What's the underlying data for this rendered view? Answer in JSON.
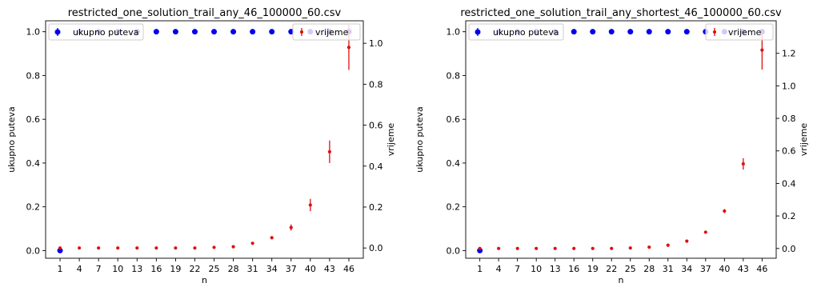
{
  "chart_data": [
    {
      "type": "scatter",
      "title": "restricted_one_solution_trail_any_46_100000_60.csv",
      "xlabel": "n",
      "ylabel_left": "ukupno puteva",
      "ylabel_right": "vrijeme",
      "x": [
        1,
        4,
        7,
        10,
        13,
        16,
        19,
        22,
        25,
        28,
        31,
        34,
        37,
        40,
        43,
        46
      ],
      "x_ticks": [
        "1",
        "4",
        "7",
        "10",
        "13",
        "16",
        "19",
        "22",
        "25",
        "28",
        "31",
        "34",
        "37",
        "40",
        "43",
        "46"
      ],
      "left_axis": {
        "ylim": [
          -0.035,
          1.05
        ],
        "ticks": [
          "0.0",
          "0.2",
          "0.4",
          "0.6",
          "0.8",
          "1.0"
        ]
      },
      "right_axis": {
        "ylim": [
          -0.05,
          1.11
        ],
        "ticks": [
          "0.0",
          "0.2",
          "0.4",
          "0.6",
          "0.8",
          "1.0"
        ]
      },
      "series": [
        {
          "name": "ukupno puteva",
          "axis": "left",
          "color": "#0000ee",
          "values": [
            0,
            1,
            1,
            1,
            1,
            1,
            1,
            1,
            1,
            1,
            1,
            1,
            1,
            1,
            1,
            1
          ],
          "errors": [
            0,
            0,
            0,
            0,
            0,
            0,
            0,
            0,
            0,
            0,
            0,
            0,
            0,
            0,
            0,
            0
          ]
        },
        {
          "name": "vrijeme",
          "axis": "right",
          "color": "#dd1111",
          "values": [
            0.0,
            0.0,
            0.0,
            0.0,
            0.0,
            0.0,
            0.0,
            0.0,
            0.003,
            0.006,
            0.023,
            0.05,
            0.1,
            0.21,
            0.47,
            0.98
          ],
          "errors": [
            0,
            0,
            0,
            0,
            0,
            0,
            0,
            0,
            0.001,
            0.002,
            0.004,
            0.008,
            0.015,
            0.03,
            0.055,
            0.11
          ]
        }
      ],
      "legend_left": "top-left",
      "legend_right": "top-right",
      "grid": false
    },
    {
      "type": "scatter",
      "title": "restricted_one_solution_trail_any_shortest_46_100000_60.csv",
      "xlabel": "n",
      "ylabel_left": "ukupno puteva",
      "ylabel_right": "vrijeme",
      "x": [
        1,
        4,
        7,
        10,
        13,
        16,
        19,
        22,
        25,
        28,
        31,
        34,
        37,
        40,
        43,
        46
      ],
      "x_ticks": [
        "1",
        "4",
        "7",
        "10",
        "13",
        "16",
        "19",
        "22",
        "25",
        "28",
        "31",
        "34",
        "37",
        "40",
        "43",
        "46"
      ],
      "left_axis": {
        "ylim": [
          -0.035,
          1.05
        ],
        "ticks": [
          "0.0",
          "0.2",
          "0.4",
          "0.6",
          "0.8",
          "1.0"
        ]
      },
      "right_axis": {
        "ylim": [
          -0.06,
          1.4
        ],
        "ticks": [
          "0.0",
          "0.2",
          "0.4",
          "0.6",
          "0.8",
          "1.0",
          "1.2"
        ]
      },
      "series": [
        {
          "name": "ukupno puteva",
          "axis": "left",
          "color": "#0000ee",
          "values": [
            0,
            1,
            1,
            1,
            1,
            1,
            1,
            1,
            1,
            1,
            1,
            1,
            1,
            1,
            1,
            1
          ],
          "errors": [
            0,
            0,
            0,
            0,
            0,
            0,
            0,
            0,
            0,
            0,
            0,
            0,
            0,
            0,
            0,
            0
          ]
        },
        {
          "name": "vrijeme",
          "axis": "right",
          "color": "#dd1111",
          "values": [
            0.0,
            0.0,
            0.0,
            0.0,
            0.0,
            0.0,
            0.0,
            0.0,
            0.003,
            0.008,
            0.02,
            0.045,
            0.1,
            0.23,
            0.52,
            1.22
          ],
          "errors": [
            0,
            0,
            0,
            0,
            0,
            0,
            0,
            0,
            0.001,
            0.002,
            0.003,
            0.005,
            0.007,
            0.012,
            0.035,
            0.12
          ]
        }
      ],
      "legend_left": "top-left",
      "legend_right": "top-right",
      "grid": false
    }
  ]
}
